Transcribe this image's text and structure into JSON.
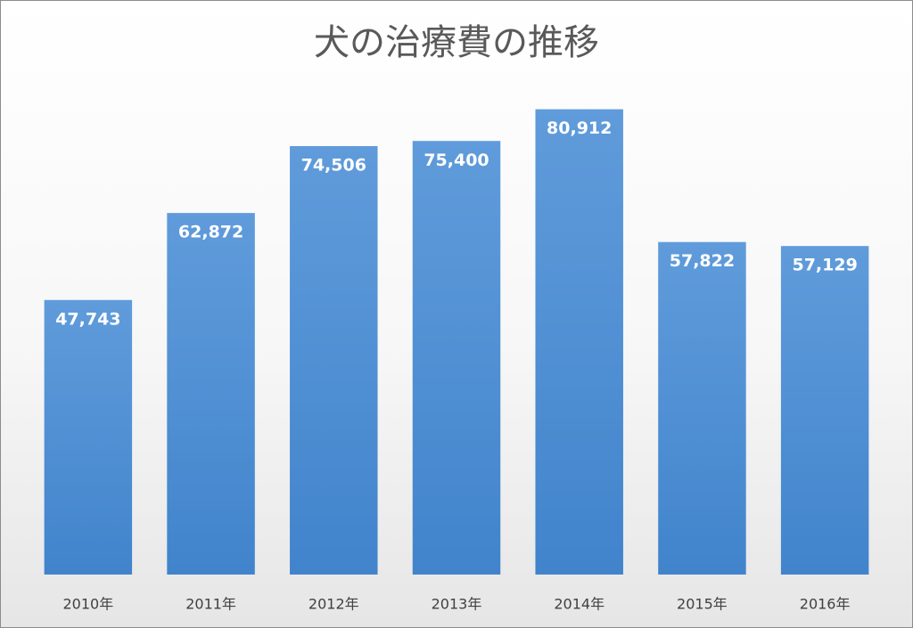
{
  "chart_data": {
    "type": "bar",
    "title": "犬の治療費の推移",
    "categories": [
      "2010年",
      "2011年",
      "2012年",
      "2013年",
      "2014年",
      "2015年",
      "2016年"
    ],
    "values": [
      47743,
      62872,
      74506,
      75400,
      80912,
      57822,
      57129
    ],
    "value_labels": [
      "47,743",
      "62,872",
      "74,506",
      "75,400",
      "80,912",
      "57,822",
      "57,129"
    ],
    "color": "#4a8ed6",
    "ylim": [
      0,
      90000
    ]
  }
}
